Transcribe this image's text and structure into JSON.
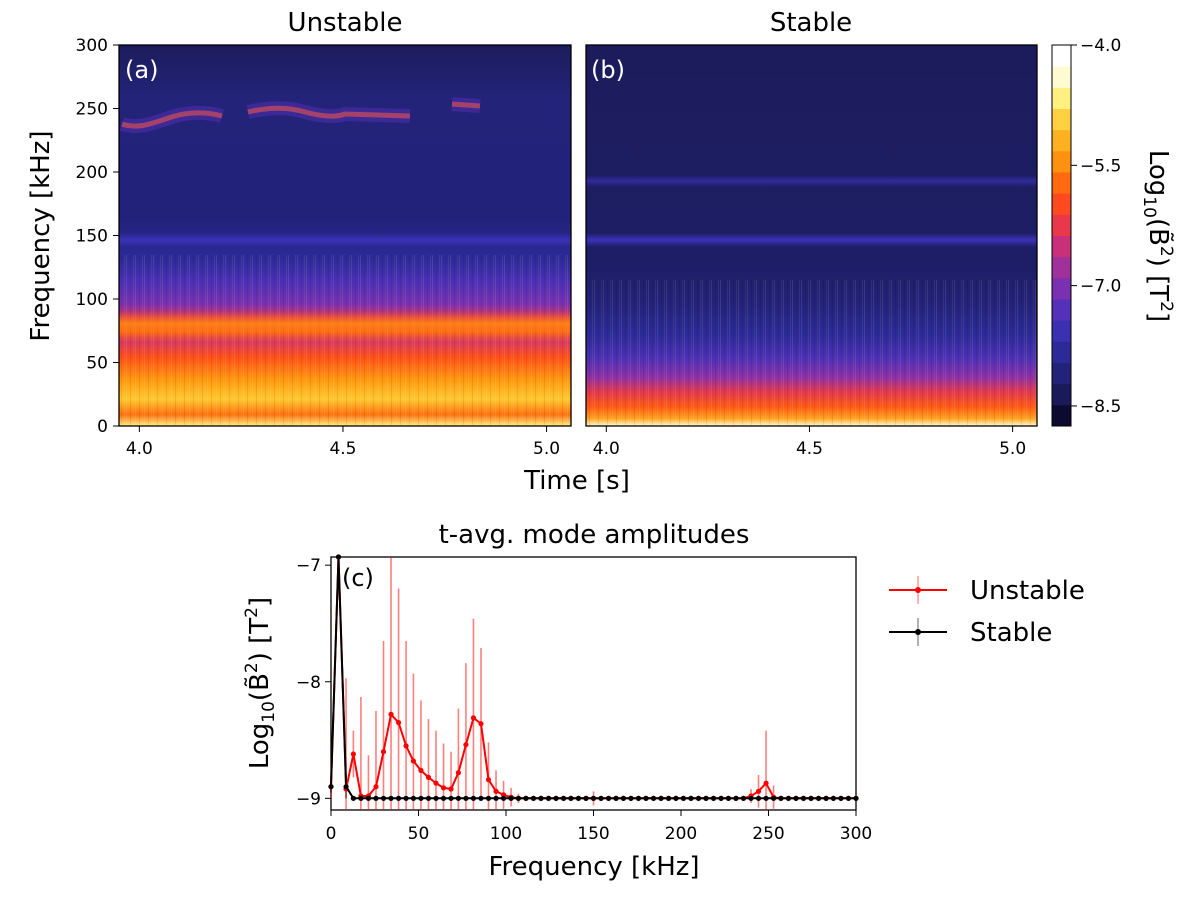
{
  "chart_data": [
    {
      "type": "heatmap",
      "panel": "(a)",
      "title": "Unstable",
      "xlabel": "Time [s]",
      "ylabel": "Frequency [kHz]",
      "xlim": [
        3.95,
        5.06
      ],
      "ylim": [
        0,
        300
      ],
      "xticks": [
        "4.0",
        "4.5",
        "5.0"
      ],
      "yticks": [
        "0",
        "50",
        "100",
        "150",
        "200",
        "250",
        "300"
      ],
      "features": [
        {
          "label": "broadband low-frequency",
          "f_min_khz": 0,
          "f_max_khz": 40,
          "log10_B2": -5.0
        },
        {
          "label": "mode band",
          "f_center_khz": 78,
          "t_range": [
            3.95,
            5.06
          ],
          "log10_B2": -6.2
        },
        {
          "label": "mode band",
          "f_center_khz": 145,
          "t_range": [
            3.95,
            5.06
          ],
          "log10_B2": -8.1
        },
        {
          "label": "chirping mode",
          "f_range_khz": [
            230,
            255
          ],
          "t_range": [
            3.95,
            4.85
          ],
          "log10_B2": -6.8
        }
      ]
    },
    {
      "type": "heatmap",
      "panel": "(b)",
      "title": "Stable",
      "xlabel": "Time [s]",
      "ylabel": "Frequency [kHz]",
      "xlim": [
        3.95,
        5.06
      ],
      "ylim": [
        0,
        300
      ],
      "xticks": [
        "4.0",
        "4.5",
        "5.0"
      ],
      "features": [
        {
          "label": "broadband low-frequency",
          "f_min_khz": 0,
          "f_max_khz": 30,
          "log10_B2": -5.5
        },
        {
          "label": "mode band",
          "f_center_khz": 145,
          "t_range": [
            3.95,
            5.06
          ],
          "log10_B2": -8.1
        },
        {
          "label": "weak band",
          "f_center_khz": 192,
          "t_range": [
            3.95,
            5.06
          ],
          "log10_B2": -8.4
        }
      ]
    },
    {
      "type": "colorbar",
      "label": "Log10(B̃²) [T²]",
      "range": [
        -8.75,
        -4.0
      ],
      "ticks": [
        "-4.0",
        "-5.5",
        "-7.0",
        "-8.5"
      ],
      "tick_values": [
        -4.0,
        -5.5,
        -7.0,
        -8.5
      ]
    },
    {
      "type": "line",
      "panel": "(c)",
      "title": "t-avg. mode amplitudes",
      "xlabel": "Frequency [kHz]",
      "ylabel": "Log10(B̃²) [T²]",
      "xlim": [
        0,
        300
      ],
      "ylim": [
        -9.1,
        -6.93
      ],
      "xticks": [
        "0",
        "50",
        "100",
        "150",
        "200",
        "250",
        "300"
      ],
      "yticks": [
        "-7",
        "-8",
        "-9"
      ],
      "legend_position": "outside-right",
      "series": [
        {
          "name": "Unstable",
          "color": "#ff0000",
          "x": [
            0,
            4.3,
            8.6,
            12.8,
            17.1,
            21.4,
            25.7,
            30,
            34.3,
            38.6,
            42.9,
            47.1,
            51.4,
            55.7,
            60,
            64.3,
            68.6,
            72.8,
            77.1,
            81.4,
            85.7,
            90,
            94.3,
            98.6,
            102.9,
            107.1,
            111.4,
            115.7,
            120,
            124.3,
            128.6,
            132.9,
            137.1,
            141.4,
            145.7,
            150,
            154.3,
            158.6,
            162.9,
            167.1,
            171.4,
            175.7,
            180,
            184.3,
            188.6,
            192.9,
            197.1,
            201.4,
            205.7,
            210,
            214.3,
            218.6,
            222.9,
            227.1,
            231.4,
            235.7,
            240,
            244.3,
            248.6,
            252.9,
            257.1,
            261.4,
            265.7,
            270,
            274.3,
            278.6,
            282.9,
            287.1,
            291.4,
            295.7,
            300
          ],
          "y": [
            -8.9,
            -6.9,
            -8.92,
            -8.62,
            -8.98,
            -8.98,
            -8.9,
            -8.6,
            -8.28,
            -8.35,
            -8.55,
            -8.68,
            -8.76,
            -8.82,
            -8.87,
            -8.91,
            -8.92,
            -8.78,
            -8.54,
            -8.31,
            -8.36,
            -8.84,
            -8.94,
            -8.97,
            -8.99,
            -9.0,
            -9.0,
            -9.0,
            -9.0,
            -9.0,
            -9.0,
            -9.0,
            -9.0,
            -9.0,
            -9.0,
            -9.0,
            -9.0,
            -9.0,
            -9.0,
            -9.0,
            -9.0,
            -9.0,
            -9.0,
            -9.0,
            -9.0,
            -9.0,
            -9.0,
            -9.0,
            -9.0,
            -9.0,
            -9.0,
            -9.0,
            -9.0,
            -9.0,
            -9.0,
            -9.0,
            -8.98,
            -8.94,
            -8.87,
            -8.99,
            -9.0,
            -9.0,
            -9.0,
            -9.0,
            -9.0,
            -9.0,
            -9.0,
            -9.0,
            -9.0,
            -9.0,
            -9.0
          ],
          "err": [
            0.1,
            0.1,
            0.95,
            0.2,
            0.85,
            0.35,
            0.65,
            0.95,
            1.4,
            1.15,
            0.9,
            0.75,
            0.6,
            0.5,
            0.45,
            0.38,
            0.32,
            0.55,
            0.7,
            0.85,
            0.65,
            0.32,
            0.18,
            0.12,
            0.08,
            0.04,
            0.02,
            0.02,
            0.02,
            0.02,
            0.02,
            0.02,
            0.02,
            0.02,
            0.02,
            0.06,
            0.02,
            0.02,
            0.02,
            0.02,
            0.02,
            0.02,
            0.02,
            0.02,
            0.02,
            0.02,
            0.02,
            0.02,
            0.02,
            0.02,
            0.02,
            0.02,
            0.02,
            0.02,
            0.02,
            0.02,
            0.06,
            0.14,
            0.45,
            0.1,
            0.02,
            0.02,
            0.02,
            0.02,
            0.02,
            0.02,
            0.02,
            0.02,
            0.02,
            0.02,
            0.02
          ]
        },
        {
          "name": "Stable",
          "color": "#000000",
          "x": [
            0,
            4.3,
            8.6,
            12.8,
            17.1,
            21.4,
            25.7,
            30,
            34.3,
            38.6,
            42.9,
            47.1,
            51.4,
            55.7,
            60,
            64.3,
            68.6,
            72.8,
            77.1,
            81.4,
            85.7,
            90,
            94.3,
            98.6,
            102.9,
            107.1,
            111.4,
            115.7,
            120,
            124.3,
            128.6,
            132.9,
            137.1,
            141.4,
            145.7,
            150,
            154.3,
            158.6,
            162.9,
            167.1,
            171.4,
            175.7,
            180,
            184.3,
            188.6,
            192.9,
            197.1,
            201.4,
            205.7,
            210,
            214.3,
            218.6,
            222.9,
            227.1,
            231.4,
            235.7,
            240,
            244.3,
            248.6,
            252.9,
            257.1,
            261.4,
            265.7,
            270,
            274.3,
            278.6,
            282.9,
            287.1,
            291.4,
            295.7,
            300
          ],
          "y": [
            -8.9,
            -6.9,
            -8.9,
            -9.0,
            -9.0,
            -9.0,
            -9.0,
            -9.0,
            -9.0,
            -9.0,
            -9.0,
            -9.0,
            -9.0,
            -9.0,
            -9.0,
            -9.0,
            -9.0,
            -9.0,
            -9.0,
            -9.0,
            -9.0,
            -9.0,
            -9.0,
            -9.0,
            -9.0,
            -9.0,
            -9.0,
            -9.0,
            -9.0,
            -9.0,
            -9.0,
            -9.0,
            -9.0,
            -9.0,
            -9.0,
            -9.0,
            -9.0,
            -9.0,
            -9.0,
            -9.0,
            -9.0,
            -9.0,
            -9.0,
            -9.0,
            -9.0,
            -9.0,
            -9.0,
            -9.0,
            -9.0,
            -9.0,
            -9.0,
            -9.0,
            -9.0,
            -9.0,
            -9.0,
            -9.0,
            -9.0,
            -9.0,
            -9.0,
            -9.0,
            -9.0,
            -9.0,
            -9.0,
            -9.0,
            -9.0,
            -9.0,
            -9.0,
            -9.0,
            -9.0,
            -9.0,
            -9.0
          ],
          "err": [
            0.05,
            0.1,
            0.1,
            0.02,
            0.02,
            0.02,
            0.02,
            0.02,
            0.02,
            0.02,
            0.02,
            0.02,
            0.02,
            0.02,
            0.02,
            0.02,
            0.02,
            0.02,
            0.02,
            0.02,
            0.02,
            0.02,
            0.02,
            0.02,
            0.02,
            0.02,
            0.02,
            0.02,
            0.02,
            0.02,
            0.02,
            0.02,
            0.02,
            0.02,
            0.02,
            0.02,
            0.02,
            0.02,
            0.02,
            0.02,
            0.02,
            0.02,
            0.02,
            0.02,
            0.02,
            0.02,
            0.02,
            0.02,
            0.02,
            0.02,
            0.02,
            0.02,
            0.02,
            0.02,
            0.02,
            0.02,
            0.02,
            0.02,
            0.02,
            0.02,
            0.02,
            0.02,
            0.02,
            0.02,
            0.02,
            0.02,
            0.02,
            0.02,
            0.02,
            0.02,
            0.02
          ]
        }
      ]
    }
  ],
  "labels": {
    "panel_a_title": "Unstable",
    "panel_b_title": "Stable",
    "panel_a_tag": "(a)",
    "panel_b_tag": "(b)",
    "panel_c_tag": "(c)",
    "panel_c_title": "t-avg. mode amplitudes",
    "spec_xlabel": "Time [s]",
    "spec_ylabel": "Frequency [kHz]",
    "c_xlabel": "Frequency [kHz]",
    "log_prefix": "Log",
    "log_sub": "10",
    "b_symbol": "(B̃",
    "sq": "2",
    "unit_open": ") [T",
    "unit_close": "]",
    "legend_unstable": "Unstable",
    "legend_stable": "Stable"
  },
  "ticks": {
    "spec_y": [
      "0",
      "50",
      "100",
      "150",
      "200",
      "250",
      "300"
    ],
    "spec_x": [
      "4.0",
      "4.5",
      "5.0"
    ],
    "cbar": [
      "−4.0",
      "−5.5",
      "−7.0",
      "−8.5"
    ],
    "c_x": [
      "0",
      "50",
      "100",
      "150",
      "200",
      "250",
      "300"
    ],
    "c_y": [
      "−7",
      "−8",
      "−9"
    ]
  },
  "colormap_hex": [
    "#0c0a2e",
    "#1a1a5a",
    "#23227a",
    "#2c2a98",
    "#3a30b0",
    "#5530b8",
    "#7a30b0",
    "#a0309a",
    "#c8307a",
    "#e8384a",
    "#ff4a20",
    "#ff6a10",
    "#ff9010",
    "#ffb020",
    "#ffd040",
    "#fff080",
    "#fffbd0",
    "#ffffff"
  ]
}
